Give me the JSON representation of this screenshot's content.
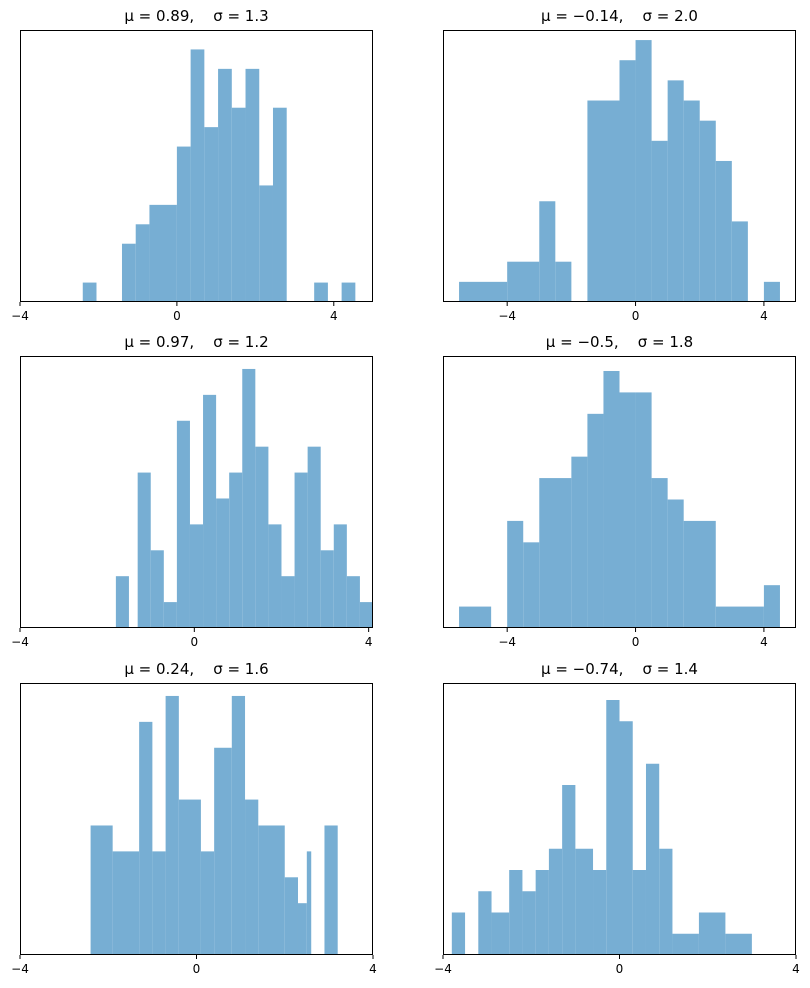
{
  "colors": {
    "bar": "#77aed3",
    "frame": "#000000"
  },
  "chart_data": [
    {
      "type": "bar",
      "title": "μ = 0.89,    σ = 1.3",
      "xlim": [
        -4,
        5
      ],
      "xticks": [
        -4,
        0,
        4
      ],
      "xtick_labels": [
        "−4",
        "0",
        "4"
      ],
      "yticks_shown": false,
      "grid": false,
      "bins": [
        {
          "x0": -2.4,
          "x1": -2.05,
          "count": 1
        },
        {
          "x0": -1.4,
          "x1": -1.05,
          "count": 3
        },
        {
          "x0": -1.05,
          "x1": -0.7,
          "count": 4
        },
        {
          "x0": -0.7,
          "x1": 0.0,
          "count": 5
        },
        {
          "x0": 0.0,
          "x1": 0.35,
          "count": 8
        },
        {
          "x0": 0.35,
          "x1": 0.7,
          "count": 13
        },
        {
          "x0": 0.7,
          "x1": 1.05,
          "count": 9
        },
        {
          "x0": 1.05,
          "x1": 1.4,
          "count": 12
        },
        {
          "x0": 1.4,
          "x1": 1.75,
          "count": 10
        },
        {
          "x0": 1.75,
          "x1": 2.1,
          "count": 12
        },
        {
          "x0": 2.1,
          "x1": 2.45,
          "count": 6
        },
        {
          "x0": 2.45,
          "x1": 2.8,
          "count": 10
        },
        {
          "x0": 3.5,
          "x1": 3.85,
          "count": 1
        },
        {
          "x0": 4.2,
          "x1": 4.55,
          "count": 1
        }
      ],
      "ymax": 14
    },
    {
      "type": "bar",
      "title": "μ = −0.14,    σ = 2.0",
      "xlim": [
        -6,
        5
      ],
      "xticks": [
        -4,
        0,
        4
      ],
      "xtick_labels": [
        "−4",
        "0",
        "4"
      ],
      "yticks_shown": false,
      "grid": false,
      "bins": [
        {
          "x0": -5.5,
          "x1": -4.0,
          "count": 1
        },
        {
          "x0": -4.0,
          "x1": -3.0,
          "count": 2
        },
        {
          "x0": -3.0,
          "x1": -2.5,
          "count": 5
        },
        {
          "x0": -2.5,
          "x1": -2.0,
          "count": 2
        },
        {
          "x0": -1.5,
          "x1": -0.5,
          "count": 10
        },
        {
          "x0": -0.5,
          "x1": 0.0,
          "count": 12
        },
        {
          "x0": 0.0,
          "x1": 0.5,
          "count": 13
        },
        {
          "x0": 0.5,
          "x1": 1.0,
          "count": 8
        },
        {
          "x0": 1.0,
          "x1": 1.5,
          "count": 11
        },
        {
          "x0": 1.5,
          "x1": 2.0,
          "count": 10
        },
        {
          "x0": 2.0,
          "x1": 2.5,
          "count": 9
        },
        {
          "x0": 2.5,
          "x1": 3.0,
          "count": 7
        },
        {
          "x0": 3.0,
          "x1": 3.5,
          "count": 4
        },
        {
          "x0": 4.0,
          "x1": 4.5,
          "count": 1
        }
      ],
      "ymax": 13.5
    },
    {
      "type": "bar",
      "title": "μ = 0.97,    σ = 1.2",
      "xlim": [
        -4,
        4.1
      ],
      "xticks": [
        -4,
        0,
        4
      ],
      "xtick_labels": [
        "−4",
        "0",
        "4"
      ],
      "yticks_shown": false,
      "grid": false,
      "bins": [
        {
          "x0": -1.8,
          "x1": -1.5,
          "count": 2
        },
        {
          "x0": -1.3,
          "x1": -1.0,
          "count": 6
        },
        {
          "x0": -1.0,
          "x1": -0.7,
          "count": 3
        },
        {
          "x0": -0.7,
          "x1": -0.4,
          "count": 1
        },
        {
          "x0": -0.4,
          "x1": -0.1,
          "count": 8
        },
        {
          "x0": -0.1,
          "x1": 0.2,
          "count": 4
        },
        {
          "x0": 0.2,
          "x1": 0.5,
          "count": 9
        },
        {
          "x0": 0.5,
          "x1": 0.8,
          "count": 5
        },
        {
          "x0": 0.8,
          "x1": 1.1,
          "count": 6
        },
        {
          "x0": 1.1,
          "x1": 1.4,
          "count": 10
        },
        {
          "x0": 1.4,
          "x1": 1.7,
          "count": 7
        },
        {
          "x0": 1.7,
          "x1": 2.0,
          "count": 4
        },
        {
          "x0": 2.0,
          "x1": 2.3,
          "count": 2
        },
        {
          "x0": 2.3,
          "x1": 2.6,
          "count": 6
        },
        {
          "x0": 2.6,
          "x1": 2.9,
          "count": 7
        },
        {
          "x0": 2.9,
          "x1": 3.2,
          "count": 3
        },
        {
          "x0": 3.2,
          "x1": 3.5,
          "count": 4
        },
        {
          "x0": 3.5,
          "x1": 3.8,
          "count": 2
        },
        {
          "x0": 3.8,
          "x1": 4.1,
          "count": 1
        }
      ],
      "ymax": 10.5
    },
    {
      "type": "bar",
      "title": "μ = −0.5,    σ = 1.8",
      "xlim": [
        -6,
        5
      ],
      "xticks": [
        -4,
        0,
        4
      ],
      "xtick_labels": [
        "−4",
        "0",
        "4"
      ],
      "yticks_shown": false,
      "grid": false,
      "bins": [
        {
          "x0": -5.5,
          "x1": -4.5,
          "count": 1
        },
        {
          "x0": -4.0,
          "x1": -3.5,
          "count": 5
        },
        {
          "x0": -3.5,
          "x1": -3.0,
          "count": 4
        },
        {
          "x0": -3.0,
          "x1": -2.0,
          "count": 7
        },
        {
          "x0": -2.0,
          "x1": -1.5,
          "count": 8
        },
        {
          "x0": -1.5,
          "x1": -1.0,
          "count": 10
        },
        {
          "x0": -1.0,
          "x1": -0.5,
          "count": 12
        },
        {
          "x0": -0.5,
          "x1": 0.0,
          "count": 11
        },
        {
          "x0": 0.0,
          "x1": 0.5,
          "count": 11
        },
        {
          "x0": 0.5,
          "x1": 1.0,
          "count": 7
        },
        {
          "x0": 1.0,
          "x1": 1.5,
          "count": 6
        },
        {
          "x0": 1.5,
          "x1": 2.5,
          "count": 5
        },
        {
          "x0": 2.5,
          "x1": 4.0,
          "count": 1
        },
        {
          "x0": 4.0,
          "x1": 4.5,
          "count": 2
        }
      ],
      "ymax": 12.7
    },
    {
      "type": "bar",
      "title": "μ = 0.24,    σ = 1.6",
      "xlim": [
        -4,
        4
      ],
      "xticks": [
        -4,
        0,
        4
      ],
      "xtick_labels": [
        "−4",
        "0",
        "4"
      ],
      "yticks_shown": false,
      "grid": false,
      "bins": [
        {
          "x0": -2.4,
          "x1": -1.9,
          "count": 5
        },
        {
          "x0": -1.9,
          "x1": -1.3,
          "count": 4
        },
        {
          "x0": -1.3,
          "x1": -1.0,
          "count": 9
        },
        {
          "x0": -1.0,
          "x1": -0.7,
          "count": 4
        },
        {
          "x0": -0.7,
          "x1": -0.4,
          "count": 10
        },
        {
          "x0": -0.4,
          "x1": 0.1,
          "count": 6
        },
        {
          "x0": 0.1,
          "x1": 0.4,
          "count": 4
        },
        {
          "x0": 0.4,
          "x1": 0.8,
          "count": 8
        },
        {
          "x0": 0.8,
          "x1": 1.1,
          "count": 10
        },
        {
          "x0": 1.1,
          "x1": 1.4,
          "count": 6
        },
        {
          "x0": 1.4,
          "x1": 2.0,
          "count": 5
        },
        {
          "x0": 2.0,
          "x1": 2.3,
          "count": 3
        },
        {
          "x0": 2.3,
          "x1": 2.5,
          "count": 2
        },
        {
          "x0": 2.5,
          "x1": 2.6,
          "count": 4
        },
        {
          "x0": 2.9,
          "x1": 3.2,
          "count": 5
        }
      ],
      "ymax": 10.5
    },
    {
      "type": "bar",
      "title": "μ = −0.74,    σ = 1.4",
      "xlim": [
        -4,
        4
      ],
      "xticks": [
        -4,
        0,
        4
      ],
      "xtick_labels": [
        "−4",
        "0",
        "4"
      ],
      "yticks_shown": false,
      "grid": false,
      "bins": [
        {
          "x0": -3.8,
          "x1": -3.5,
          "count": 2
        },
        {
          "x0": -3.2,
          "x1": -2.9,
          "count": 3
        },
        {
          "x0": -2.9,
          "x1": -2.5,
          "count": 2
        },
        {
          "x0": -2.5,
          "x1": -2.2,
          "count": 4
        },
        {
          "x0": -2.2,
          "x1": -1.9,
          "count": 3
        },
        {
          "x0": -1.9,
          "x1": -1.6,
          "count": 4
        },
        {
          "x0": -1.6,
          "x1": -1.3,
          "count": 5
        },
        {
          "x0": -1.3,
          "x1": -1.0,
          "count": 8
        },
        {
          "x0": -1.0,
          "x1": -0.6,
          "count": 5
        },
        {
          "x0": -0.6,
          "x1": -0.3,
          "count": 4
        },
        {
          "x0": -0.3,
          "x1": 0.0,
          "count": 12
        },
        {
          "x0": 0.0,
          "x1": 0.3,
          "count": 11
        },
        {
          "x0": 0.3,
          "x1": 0.6,
          "count": 4
        },
        {
          "x0": 0.6,
          "x1": 0.9,
          "count": 9
        },
        {
          "x0": 0.9,
          "x1": 1.2,
          "count": 5
        },
        {
          "x0": 1.2,
          "x1": 1.8,
          "count": 1
        },
        {
          "x0": 1.8,
          "x1": 2.4,
          "count": 2
        },
        {
          "x0": 2.4,
          "x1": 3.0,
          "count": 1
        }
      ],
      "ymax": 12.8
    }
  ]
}
